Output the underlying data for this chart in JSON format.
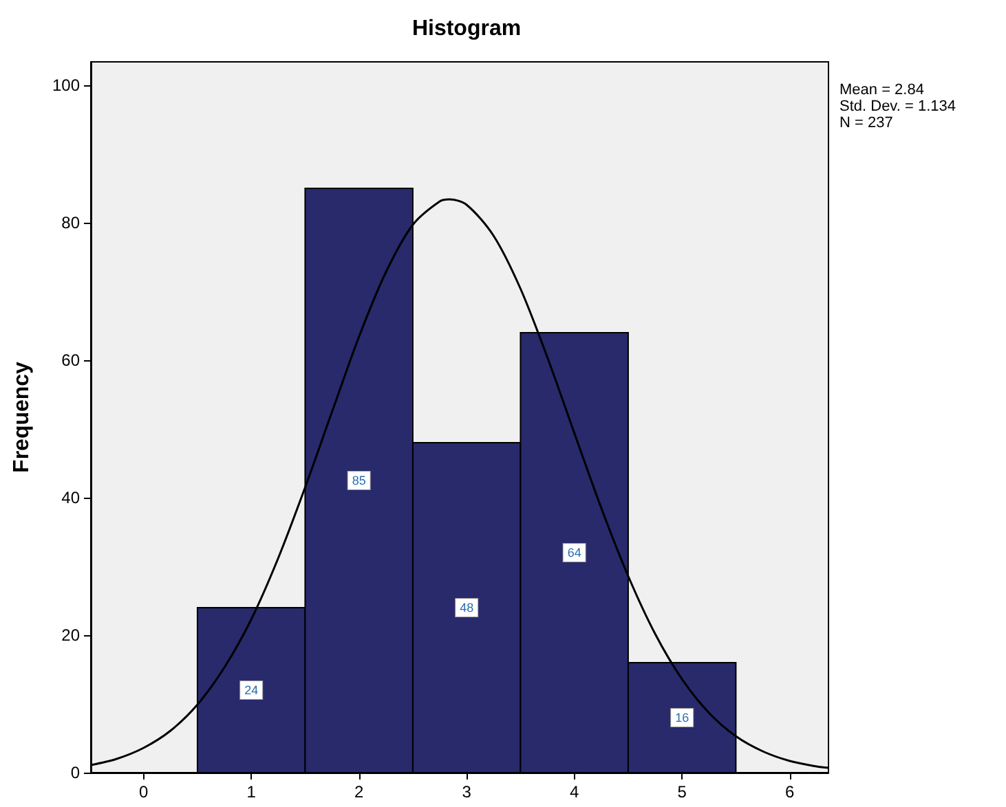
{
  "chart_data": {
    "type": "histogram",
    "title": "Histogram",
    "ylabel": "Frequency",
    "bins": [
      0.5,
      1.5,
      2.5,
      3.5,
      4.5,
      5.5
    ],
    "values": [
      24,
      85,
      48,
      64,
      16
    ],
    "color": "#282a6c",
    "value_labels": [
      "24",
      "85",
      "48",
      "64",
      "16"
    ],
    "series": [
      {
        "type": "line",
        "color": "#000000",
        "x": [
          -0.49,
          -0.25,
          0,
          0.25,
          0.5,
          0.75,
          1,
          1.25,
          1.5,
          1.75,
          2,
          2.25,
          2.5,
          2.75,
          2.84,
          3,
          3.25,
          3.5,
          3.75,
          4,
          4.25,
          4.5,
          4.75,
          5,
          5.25,
          5.5,
          5.75,
          6,
          6.25,
          6.36
        ],
        "values": [
          1.1,
          2.0,
          3.6,
          6.1,
          9.9,
          15.3,
          22.3,
          31.2,
          41.5,
          52.5,
          63.4,
          72.8,
          79.7,
          83.1,
          83.4,
          82.6,
          78.1,
          70.4,
          60.4,
          49.4,
          38.5,
          28.6,
          20.2,
          13.6,
          8.7,
          5.3,
          3.1,
          1.7,
          0.9,
          0.7
        ]
      }
    ],
    "xlim": [
      -0.49,
      6.36
    ],
    "xticks": [
      0,
      1,
      2,
      3,
      4,
      5,
      6
    ],
    "ylim": [
      0,
      103.4
    ],
    "yticks": [
      0,
      20,
      40,
      60,
      80,
      100
    ],
    "grid": false,
    "annotations": [
      "Mean = 2.84",
      "Std. Dev. = 1.134",
      "N = 237"
    ]
  }
}
